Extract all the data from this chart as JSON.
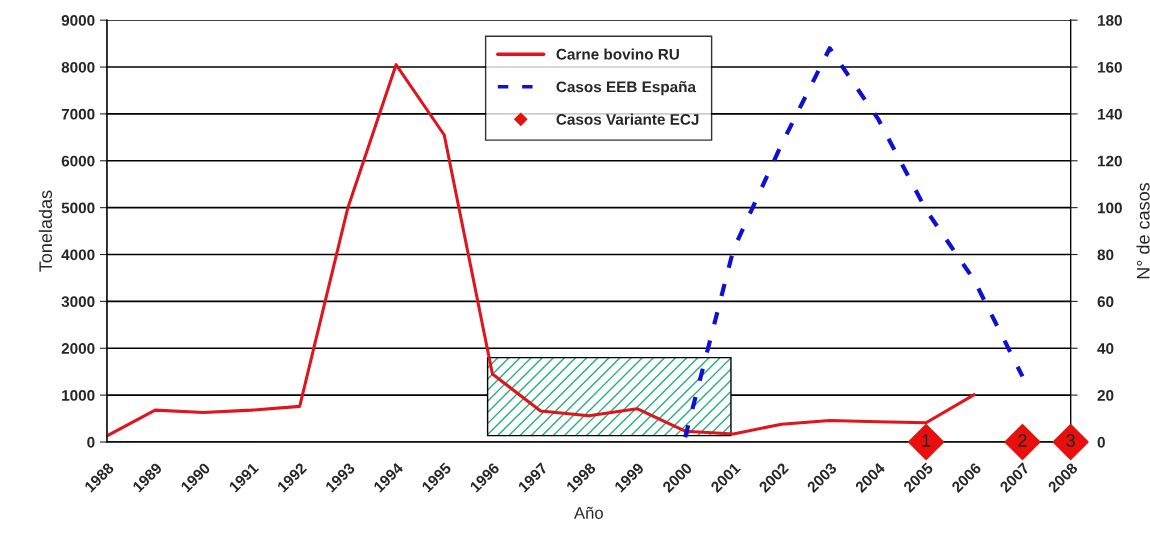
{
  "chart_data": {
    "type": "line",
    "xlabel": "Año",
    "ylabel": "Toneladas",
    "y2label": "N° de casos",
    "categories": [
      "1988",
      "1989",
      "1990",
      "1991",
      "1992",
      "1993",
      "1994",
      "1995",
      "1996",
      "1997",
      "1998",
      "1999",
      "2000",
      "2001",
      "2002",
      "2003",
      "2004",
      "2005",
      "2006",
      "2007",
      "2008"
    ],
    "series": [
      {
        "name": "Carne bovino RU",
        "color": "#e0141c",
        "line_style": "solid",
        "marker": "none",
        "values": [
          130,
          680,
          630,
          680,
          760,
          5000,
          8050,
          6550,
          1450,
          660,
          560,
          710,
          230,
          170,
          380,
          460,
          430,
          410,
          1010,
          null,
          null
        ]
      },
      {
        "name": "Casos EEB España",
        "axis": "y2",
        "color": "#1010d0",
        "line_style": "dashed",
        "marker": "none",
        "values": [
          null,
          null,
          null,
          null,
          null,
          null,
          null,
          null,
          null,
          null,
          null,
          null,
          2,
          82,
          127,
          168,
          138,
          99,
          69,
          28,
          null
        ]
      },
      {
        "name": "Casos Variante ECJ",
        "type": "scatter",
        "axis": "y2",
        "color": "#e8100c",
        "marker": "diamond",
        "values": [
          null,
          null,
          null,
          null,
          null,
          null,
          null,
          null,
          null,
          null,
          null,
          null,
          null,
          null,
          null,
          null,
          null,
          0,
          null,
          0,
          0
        ]
      }
    ],
    "annotations": [
      {
        "text": "1",
        "x": "2005",
        "y": 0
      },
      {
        "text": "2",
        "x": "2007",
        "y": 0
      },
      {
        "text": "3",
        "x": "2008",
        "y": 0
      }
    ],
    "bands": [
      {
        "axis": "x",
        "from": "1996",
        "to": "2001",
        "color": "#20b080"
      }
    ],
    "ylim": [
      0,
      9000
    ],
    "yticks": [
      0,
      1000,
      2000,
      3000,
      4000,
      5000,
      6000,
      7000,
      8000,
      9000
    ],
    "y2lim": [
      0,
      180
    ],
    "y2ticks": [
      0,
      20,
      40,
      60,
      80,
      100,
      120,
      140,
      160,
      180
    ],
    "grid": "y",
    "legend": "top"
  }
}
